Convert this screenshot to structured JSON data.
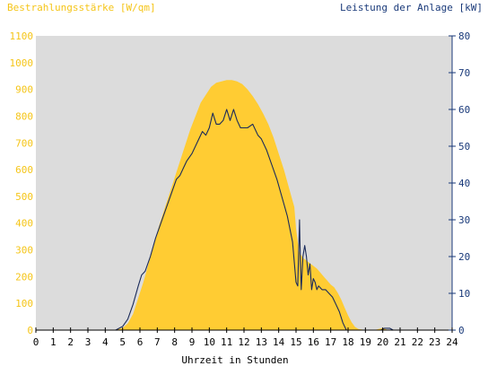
{
  "chart_data": {
    "type": "area",
    "title_left": "Bestrahlungsstärke [W/qm]",
    "title_right": "Leistung der Anlage [kW]",
    "xlabel": "Uhrzeit in Stunden",
    "x_ticks": [
      "0",
      "1",
      "2",
      "3",
      "4",
      "5",
      "6",
      "7",
      "8",
      "9",
      "10",
      "11",
      "12",
      "13",
      "14",
      "15",
      "16",
      "17",
      "18",
      "19",
      "20",
      "21",
      "22",
      "23",
      "24"
    ],
    "xlim": [
      0,
      24
    ],
    "y_left": {
      "label": "Bestrahlungsstärke [W/qm]",
      "lim": [
        0,
        1100
      ],
      "ticks": [
        "0",
        "100",
        "200",
        "300",
        "400",
        "500",
        "600",
        "700",
        "800",
        "900",
        "1000",
        "1100"
      ]
    },
    "y_right": {
      "label": "Leistung der Anlage [kW]",
      "lim": [
        0,
        80
      ],
      "ticks": [
        "0",
        "10",
        "20",
        "30",
        "40",
        "50",
        "60",
        "70",
        "80"
      ]
    },
    "series": [
      {
        "name": "Bestrahlungsstärke",
        "axis": "left",
        "style": "filled-area",
        "color": "#ffcc33",
        "x": [
          0,
          4.5,
          5.0,
          5.3,
          5.6,
          5.9,
          6.2,
          6.5,
          6.8,
          7.1,
          7.4,
          7.7,
          8.0,
          8.3,
          8.6,
          8.9,
          9.2,
          9.5,
          9.8,
          10.1,
          10.4,
          10.7,
          11.0,
          11.3,
          11.6,
          11.9,
          12.2,
          12.5,
          12.8,
          13.1,
          13.4,
          13.7,
          14.0,
          14.3,
          14.6,
          14.9,
          15.0,
          15.1,
          15.2,
          15.4,
          15.6,
          15.8,
          16.0,
          16.2,
          16.4,
          16.6,
          16.8,
          17.0,
          17.2,
          17.4,
          17.6,
          17.8,
          18.0,
          18.2,
          18.4,
          18.6,
          19.0,
          19.5,
          20.0,
          20.3,
          21.0,
          24
        ],
        "values": [
          0,
          0,
          8,
          25,
          60,
          120,
          180,
          250,
          320,
          390,
          450,
          510,
          570,
          630,
          690,
          750,
          800,
          850,
          880,
          910,
          925,
          930,
          935,
          935,
          930,
          920,
          900,
          875,
          845,
          810,
          770,
          720,
          660,
          600,
          530,
          460,
          380,
          330,
          290,
          270,
          260,
          250,
          240,
          230,
          215,
          200,
          185,
          170,
          160,
          140,
          115,
          85,
          55,
          30,
          12,
          4,
          0,
          0,
          8,
          0,
          0,
          0
        ]
      },
      {
        "name": "Leistung der Anlage",
        "axis": "right",
        "style": "line",
        "color": "#1a2a5a",
        "x": [
          0,
          4.6,
          5.0,
          5.3,
          5.6,
          5.9,
          6.1,
          6.3,
          6.6,
          6.9,
          7.2,
          7.5,
          7.8,
          8.1,
          8.3,
          8.5,
          8.7,
          9.0,
          9.3,
          9.6,
          9.8,
          10.0,
          10.2,
          10.4,
          10.6,
          10.8,
          11.0,
          11.2,
          11.4,
          11.6,
          11.8,
          12.0,
          12.2,
          12.5,
          12.8,
          13.0,
          13.3,
          13.6,
          13.9,
          14.2,
          14.5,
          14.8,
          15.0,
          15.1,
          15.2,
          15.25,
          15.3,
          15.4,
          15.5,
          15.6,
          15.7,
          15.8,
          15.9,
          16.0,
          16.1,
          16.2,
          16.3,
          16.5,
          16.7,
          16.9,
          17.1,
          17.3,
          17.5,
          17.7,
          17.9,
          18.1,
          18.3,
          18.5,
          18.8,
          19.5,
          19.9,
          20.1,
          20.4,
          20.6,
          24
        ],
        "values": [
          0,
          0,
          1,
          3,
          7,
          12,
          15,
          16,
          20,
          25,
          29,
          33,
          37,
          41,
          42,
          44,
          46,
          48,
          51,
          54,
          53,
          55,
          59,
          56,
          56,
          57,
          60,
          57,
          60,
          57,
          55,
          55,
          55,
          56,
          53,
          52,
          49,
          45,
          41,
          36,
          31,
          24,
          13,
          12,
          30,
          19,
          11,
          20,
          23,
          20,
          15,
          18,
          11,
          14,
          13,
          11,
          12,
          11,
          11,
          10,
          9,
          7,
          5,
          2,
          0,
          0,
          0,
          0,
          0,
          0,
          0,
          0.5,
          0.5,
          0,
          0
        ]
      }
    ],
    "grid": false,
    "legend": "none"
  }
}
